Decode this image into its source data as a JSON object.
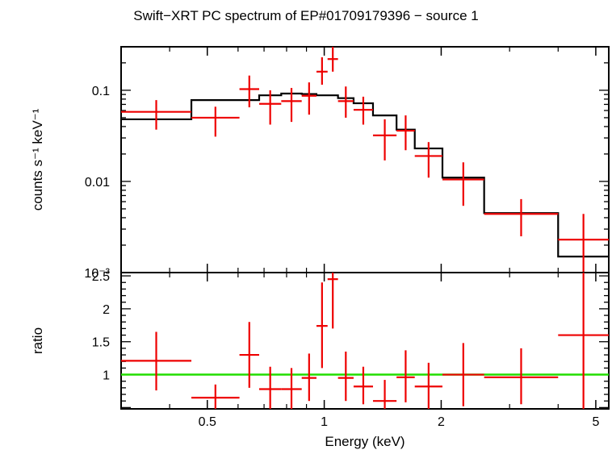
{
  "chart_data": [
    {
      "type": "scatter",
      "panel": "spectrum",
      "title": "Swift−XRT PC spectrum of EP#01709179396 − source 1",
      "xlabel": "Energy (keV)",
      "ylabel": "counts s⁻¹ keV⁻¹",
      "x_scale": "log",
      "y_scale": "log",
      "xlim": [
        0.3,
        5.4
      ],
      "ylim": [
        0.001,
        0.3
      ],
      "y_ticks": [
        {
          "value": 0.1,
          "label": "0.1"
        },
        {
          "value": 0.01,
          "label": "0.01"
        },
        {
          "value": 0.001,
          "label": "10⁻³"
        }
      ],
      "colors": {
        "data": "#ee0000",
        "model": "#000000"
      },
      "data": [
        {
          "x_lo": 0.3,
          "x_hi": 0.455,
          "y": 0.058,
          "y_lo": 0.037,
          "y_hi": 0.078
        },
        {
          "x_lo": 0.455,
          "x_hi": 0.605,
          "y": 0.05,
          "y_lo": 0.031,
          "y_hi": 0.066
        },
        {
          "x_lo": 0.605,
          "x_hi": 0.68,
          "y": 0.103,
          "y_lo": 0.065,
          "y_hi": 0.145
        },
        {
          "x_lo": 0.68,
          "x_hi": 0.775,
          "y": 0.071,
          "y_lo": 0.042,
          "y_hi": 0.1
        },
        {
          "x_lo": 0.775,
          "x_hi": 0.875,
          "y": 0.076,
          "y_lo": 0.045,
          "y_hi": 0.106
        },
        {
          "x_lo": 0.875,
          "x_hi": 0.955,
          "y": 0.087,
          "y_lo": 0.054,
          "y_hi": 0.122
        },
        {
          "x_lo": 0.955,
          "x_hi": 1.02,
          "y": 0.16,
          "y_lo": 0.115,
          "y_hi": 0.23
        },
        {
          "x_lo": 1.02,
          "x_hi": 1.085,
          "y": 0.22,
          "y_lo": 0.16,
          "y_hi": 0.3
        },
        {
          "x_lo": 1.085,
          "x_hi": 1.19,
          "y": 0.076,
          "y_lo": 0.05,
          "y_hi": 0.11
        },
        {
          "x_lo": 1.19,
          "x_hi": 1.335,
          "y": 0.061,
          "y_lo": 0.042,
          "y_hi": 0.085
        },
        {
          "x_lo": 1.335,
          "x_hi": 1.535,
          "y": 0.032,
          "y_lo": 0.017,
          "y_hi": 0.048
        },
        {
          "x_lo": 1.535,
          "x_hi": 1.71,
          "y": 0.036,
          "y_lo": 0.022,
          "y_hi": 0.053
        },
        {
          "x_lo": 1.71,
          "x_hi": 2.015,
          "y": 0.019,
          "y_lo": 0.011,
          "y_hi": 0.027
        },
        {
          "x_lo": 2.015,
          "x_hi": 2.58,
          "y": 0.0105,
          "y_lo": 0.0054,
          "y_hi": 0.0162
        },
        {
          "x_lo": 2.58,
          "x_hi": 4.0,
          "y": 0.0044,
          "y_lo": 0.0025,
          "y_hi": 0.0064
        },
        {
          "x_lo": 4.0,
          "x_hi": 5.4,
          "y": 0.0023,
          "y_lo": 0.001,
          "y_hi": 0.0044
        }
      ],
      "model": [
        {
          "x_lo": 0.3,
          "x_hi": 0.455,
          "y": 0.048
        },
        {
          "x_lo": 0.455,
          "x_hi": 0.68,
          "y": 0.078
        },
        {
          "x_lo": 0.68,
          "x_hi": 0.775,
          "y": 0.088
        },
        {
          "x_lo": 0.775,
          "x_hi": 0.875,
          "y": 0.092
        },
        {
          "x_lo": 0.875,
          "x_hi": 0.955,
          "y": 0.091
        },
        {
          "x_lo": 0.955,
          "x_hi": 1.085,
          "y": 0.088
        },
        {
          "x_lo": 1.085,
          "x_hi": 1.19,
          "y": 0.082
        },
        {
          "x_lo": 1.19,
          "x_hi": 1.335,
          "y": 0.072
        },
        {
          "x_lo": 1.335,
          "x_hi": 1.535,
          "y": 0.053
        },
        {
          "x_lo": 1.535,
          "x_hi": 1.71,
          "y": 0.037
        },
        {
          "x_lo": 1.71,
          "x_hi": 2.015,
          "y": 0.023
        },
        {
          "x_lo": 2.015,
          "x_hi": 2.58,
          "y": 0.011
        },
        {
          "x_lo": 2.58,
          "x_hi": 4.0,
          "y": 0.0045
        },
        {
          "x_lo": 4.0,
          "x_hi": 5.4,
          "y": 0.0015
        }
      ]
    },
    {
      "type": "scatter",
      "panel": "ratio",
      "xlabel": "Energy (keV)",
      "ylabel": "ratio",
      "x_scale": "log",
      "y_scale": "linear",
      "xlim": [
        0.3,
        5.4
      ],
      "ylim": [
        0.48,
        2.55
      ],
      "x_ticks": [
        {
          "value": 0.5,
          "label": "0.5"
        },
        {
          "value": 1,
          "label": "1"
        },
        {
          "value": 2,
          "label": "2"
        },
        {
          "value": 5,
          "label": "5"
        }
      ],
      "y_ticks": [
        {
          "value": 1,
          "label": "1"
        },
        {
          "value": 1.5,
          "label": "1.5"
        },
        {
          "value": 2,
          "label": "2"
        },
        {
          "value": 2.5,
          "label": "2.5"
        }
      ],
      "reference_line": {
        "y": 1,
        "color": "#22dd00"
      },
      "colors": {
        "data": "#ee0000"
      },
      "data": [
        {
          "x_lo": 0.3,
          "x_hi": 0.455,
          "y": 1.21,
          "y_lo": 0.76,
          "y_hi": 1.65
        },
        {
          "x_lo": 0.455,
          "x_hi": 0.605,
          "y": 0.65,
          "y_lo": 0.48,
          "y_hi": 0.85
        },
        {
          "x_lo": 0.605,
          "x_hi": 0.68,
          "y": 1.3,
          "y_lo": 0.8,
          "y_hi": 1.8
        },
        {
          "x_lo": 0.68,
          "x_hi": 0.775,
          "y": 0.78,
          "y_lo": 0.48,
          "y_hi": 1.12
        },
        {
          "x_lo": 0.775,
          "x_hi": 0.875,
          "y": 0.78,
          "y_lo": 0.48,
          "y_hi": 1.1
        },
        {
          "x_lo": 0.875,
          "x_hi": 0.955,
          "y": 0.95,
          "y_lo": 0.6,
          "y_hi": 1.32
        },
        {
          "x_lo": 0.955,
          "x_hi": 1.02,
          "y": 1.74,
          "y_lo": 1.1,
          "y_hi": 2.4
        },
        {
          "x_lo": 1.02,
          "x_hi": 1.085,
          "y": 2.45,
          "y_lo": 1.7,
          "y_hi": 2.55
        },
        {
          "x_lo": 1.085,
          "x_hi": 1.19,
          "y": 0.95,
          "y_lo": 0.6,
          "y_hi": 1.35
        },
        {
          "x_lo": 1.19,
          "x_hi": 1.335,
          "y": 0.82,
          "y_lo": 0.55,
          "y_hi": 1.12
        },
        {
          "x_lo": 1.335,
          "x_hi": 1.535,
          "y": 0.6,
          "y_lo": 0.48,
          "y_hi": 0.92
        },
        {
          "x_lo": 1.535,
          "x_hi": 1.71,
          "y": 0.96,
          "y_lo": 0.58,
          "y_hi": 1.37
        },
        {
          "x_lo": 1.71,
          "x_hi": 2.015,
          "y": 0.82,
          "y_lo": 0.48,
          "y_hi": 1.18
        },
        {
          "x_lo": 2.015,
          "x_hi": 2.58,
          "y": 1.0,
          "y_lo": 0.52,
          "y_hi": 1.48
        },
        {
          "x_lo": 2.58,
          "x_hi": 4.0,
          "y": 0.96,
          "y_lo": 0.55,
          "y_hi": 1.4
        },
        {
          "x_lo": 4.0,
          "x_hi": 5.4,
          "y": 1.6,
          "y_lo": 0.48,
          "y_hi": 2.55
        }
      ]
    }
  ]
}
